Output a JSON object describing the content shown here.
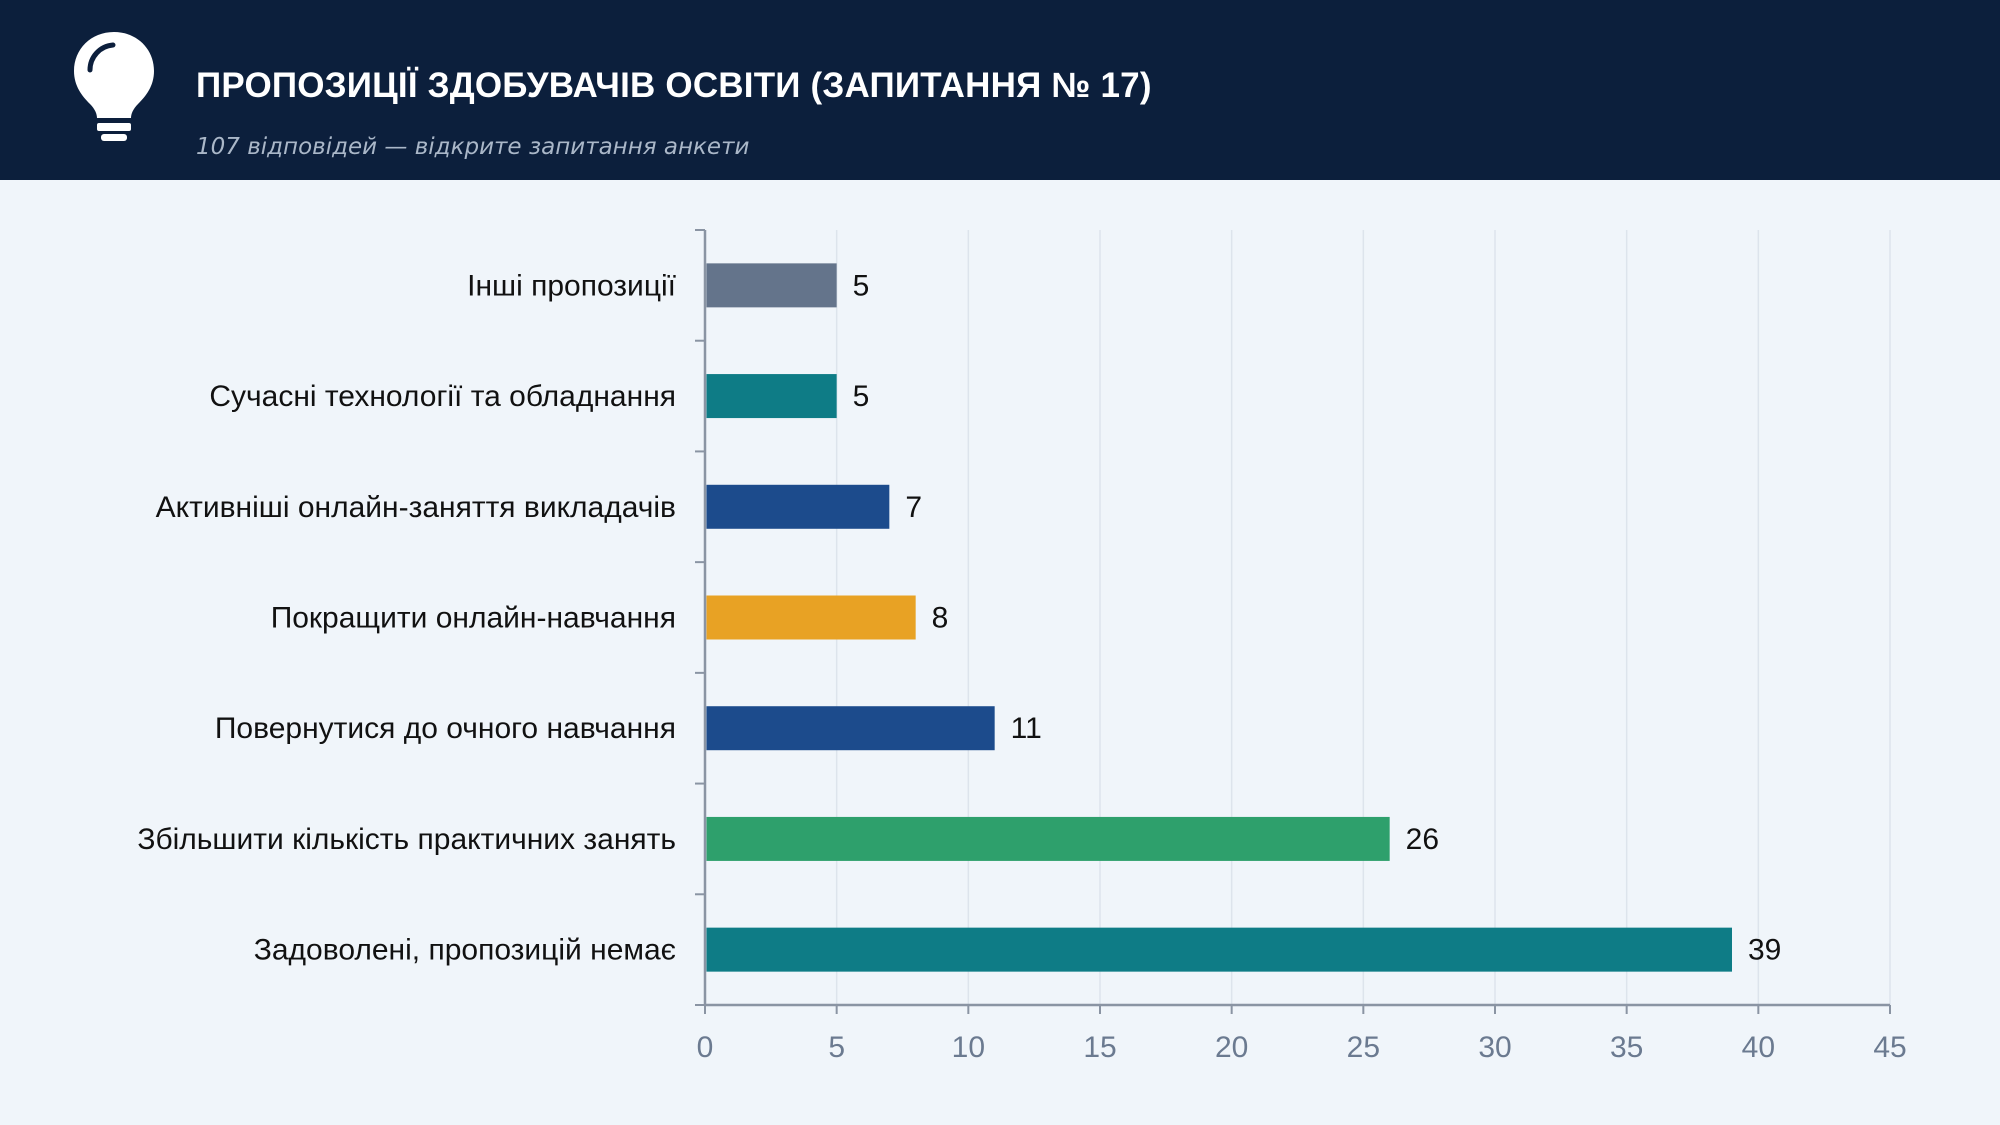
{
  "header": {
    "title": "ПРОПОЗИЦІЇ ЗДОБУВАЧІВ ОСВІТИ (ЗАПИТАННЯ № 17)",
    "subtitle": "107 відповідей — відкрите запитання анкети",
    "icon": "lightbulb-icon"
  },
  "chart_data": {
    "type": "bar",
    "orientation": "horizontal",
    "categories": [
      "Інші пропозиції",
      "Сучасні технології та обладнання",
      "Активніші онлайн-заняття викладачів",
      "Покращити онлайн-навчання",
      "Повернутися до очного навчання",
      "Збільшити кількість практичних занять",
      "Задоволені, пропозицій немає"
    ],
    "values": [
      5,
      5,
      7,
      8,
      11,
      26,
      39
    ],
    "colors": [
      "#64748b",
      "#0e7c86",
      "#1c4b8c",
      "#e8a224",
      "#1c4b8c",
      "#2ea06c",
      "#0e7c86"
    ],
    "xlim": [
      0,
      45
    ],
    "xticks": [
      0,
      5,
      10,
      15,
      20,
      25,
      30,
      35,
      40,
      45
    ],
    "grid": true,
    "data_labels": true
  }
}
